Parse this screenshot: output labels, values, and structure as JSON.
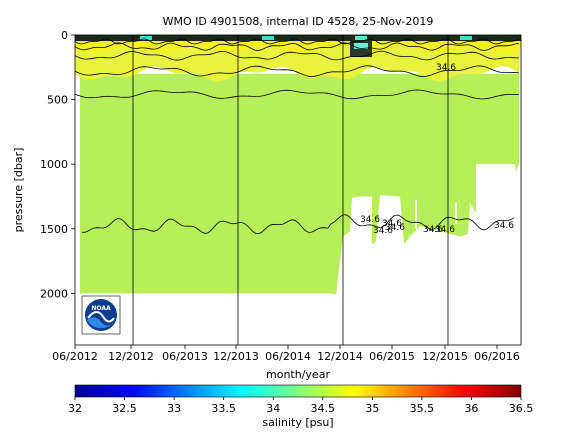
{
  "chart_data": {
    "type": "heatmap",
    "title": "WMO ID 4901508, internal ID 4528, 25-Nov-2019",
    "xlabel": "month/year",
    "ylabel": "pressure [dbar]",
    "x_ticks": [
      "06/2012",
      "12/2012",
      "06/2013",
      "12/2013",
      "06/2014",
      "12/2014",
      "06/2015",
      "12/2015",
      "06/2016"
    ],
    "y_ticks": [
      0,
      500,
      1000,
      1500,
      2000
    ],
    "ylim": [
      0,
      2400
    ],
    "y_reversed": true,
    "grid": false,
    "year_markers": [
      "12/2012",
      "12/2013",
      "12/2014",
      "12/2015"
    ],
    "contour_labels": [
      "34.6",
      "34.6",
      "34.6",
      "34.6",
      "34.6",
      "34.6",
      "34.6",
      "34.6"
    ],
    "colorbar": {
      "label": "salinity [psu]",
      "range": [
        32,
        36.5
      ],
      "ticks": [
        "32",
        "32.5",
        "33",
        "33.5",
        "34",
        "34.5",
        "35",
        "35.5",
        "36",
        "36.5"
      ],
      "colormap": "jet"
    },
    "field_colors": {
      "deep": "#b7ee5a",
      "upper": "#e9f23d",
      "surface": "#f5f020"
    },
    "logo": "noaa-logo"
  }
}
